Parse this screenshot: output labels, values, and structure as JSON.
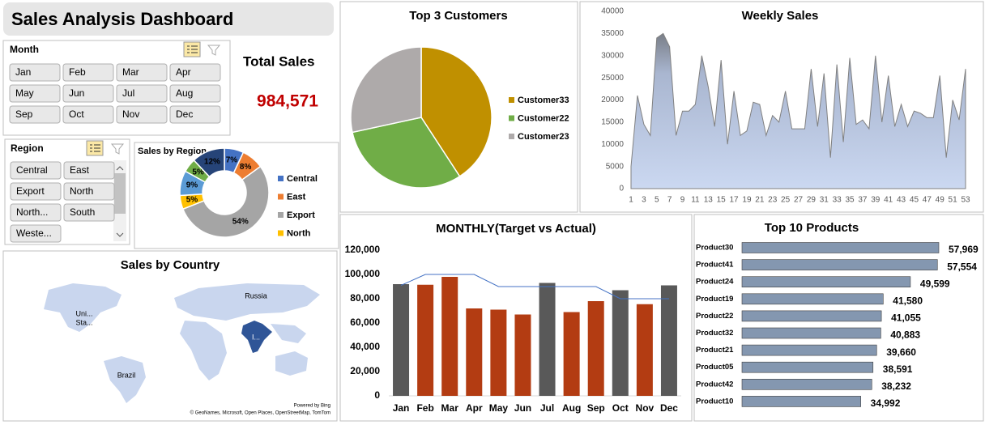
{
  "header": {
    "title": "Sales Analysis Dashboard"
  },
  "month_slicer": {
    "title": "Month",
    "items": [
      "Jan",
      "Feb",
      "Mar",
      "Apr",
      "May",
      "Jun",
      "Jul",
      "Aug",
      "Sep",
      "Oct",
      "Nov",
      "Dec"
    ]
  },
  "region_slicer": {
    "title": "Region",
    "items": [
      "Central",
      "East",
      "Export",
      "North",
      "North...",
      "South",
      "Weste..."
    ]
  },
  "total_sales": {
    "label": "Total Sales",
    "value": "984,571"
  },
  "map": {
    "title": "Sales by Country",
    "labels": [
      "Russia",
      "Uni...",
      "Sta...",
      "I...",
      "Brazil"
    ],
    "credits": [
      "Powered by Bing",
      "© GeoNames, Microsoft, Open Places, OpenStreetMap, TomTom"
    ]
  },
  "chart_data": [
    {
      "type": "pie",
      "title": "Top 3 Customers",
      "categories": [
        "Customer33",
        "Customer22",
        "Customer23"
      ],
      "values": [
        40.8,
        30.8,
        28.4
      ],
      "colors": [
        "#c09000",
        "#70ad47",
        "#aeaaaa"
      ]
    },
    {
      "type": "area",
      "title": "Weekly Sales",
      "x": [
        1,
        2,
        3,
        4,
        5,
        6,
        7,
        8,
        9,
        10,
        11,
        12,
        13,
        14,
        15,
        16,
        17,
        18,
        19,
        20,
        21,
        22,
        23,
        24,
        25,
        26,
        27,
        28,
        29,
        30,
        31,
        32,
        33,
        34,
        35,
        36,
        37,
        38,
        39,
        40,
        41,
        42,
        43,
        44,
        45,
        46,
        47,
        48,
        49,
        50,
        51,
        52,
        53
      ],
      "values": [
        5000,
        21000,
        14500,
        12000,
        34000,
        35000,
        32000,
        12000,
        17500,
        17500,
        19000,
        30000,
        23000,
        14000,
        29000,
        10000,
        22000,
        12000,
        13000,
        19500,
        19000,
        12000,
        16500,
        15000,
        22000,
        13500,
        13500,
        13500,
        27000,
        14000,
        26000,
        7000,
        28000,
        10500,
        29500,
        14500,
        15500,
        13500,
        30000,
        15000,
        25500,
        14000,
        19000,
        14000,
        17500,
        17000,
        16000,
        16000,
        25500,
        7000,
        20000,
        15500,
        27000
      ],
      "xlim": [
        1,
        53
      ],
      "xticks": [
        1,
        3,
        5,
        7,
        9,
        11,
        13,
        15,
        17,
        19,
        21,
        23,
        25,
        27,
        29,
        31,
        33,
        35,
        37,
        39,
        41,
        43,
        45,
        47,
        49,
        51,
        53
      ],
      "ylim": [
        0,
        40000
      ],
      "yticks": [
        0,
        5000,
        10000,
        15000,
        20000,
        25000,
        30000,
        35000,
        40000
      ],
      "color": "#808080"
    },
    {
      "type": "donut",
      "title": "Sales by Region",
      "categories": [
        "Central",
        "East",
        "Export",
        "North",
        null,
        null,
        null
      ],
      "values": [
        7,
        8,
        54,
        5,
        9,
        5,
        12
      ],
      "value_labels": [
        "7%",
        "8%",
        "54%",
        "5%",
        "9%",
        "5%",
        "12%"
      ],
      "colors": [
        "#4472c4",
        "#ed7d31",
        "#a5a5a5",
        "#ffc000",
        "#5b9bd5",
        "#70ad47",
        "#264478"
      ]
    },
    {
      "type": "combo",
      "title": "MONTHLY(Target vs Actual)",
      "categories": [
        "Jan",
        "Feb",
        "Mar",
        "Apr",
        "May",
        "Jun",
        "Jul",
        "Aug",
        "Sep",
        "Oct",
        "Nov",
        "Dec"
      ],
      "series": [
        {
          "type": "bar",
          "colors": [
            "#595959",
            "#b33c12",
            "#b33c12",
            "#b33c12",
            "#b33c12",
            "#b33c12",
            "#595959",
            "#b33c12",
            "#b33c12",
            "#595959",
            "#b33c12",
            "#595959"
          ],
          "values": [
            92000,
            91500,
            98000,
            72000,
            71000,
            67000,
            93000,
            69000,
            78000,
            87000,
            75500,
            91000
          ]
        },
        {
          "type": "line",
          "color": "#4472c4",
          "values": [
            91000,
            100000,
            100000,
            100000,
            90000,
            90000,
            90000,
            90000,
            90000,
            80000,
            80000,
            80000
          ]
        }
      ],
      "ylim": [
        0,
        120000
      ],
      "yticks": [
        0,
        {
          "value": 20000,
          "label": "20,000"
        },
        {
          "value": 40000,
          "label": "40,000"
        },
        {
          "value": 60000,
          "label": "60,000"
        },
        {
          "value": 80000,
          "label": "80,000"
        },
        {
          "value": 100000,
          "label": "100,000"
        },
        {
          "value": 120000,
          "label": "120,000"
        }
      ]
    },
    {
      "type": "hbar",
      "title": "Top 10 Products",
      "categories": [
        "Product30",
        "Product41",
        "Product24",
        "Product19",
        "Product22",
        "Product32",
        "Product21",
        "Product05",
        "Product42",
        "Product10"
      ],
      "values": [
        57969,
        57554,
        49599,
        41580,
        41055,
        40883,
        39660,
        38591,
        38232,
        34992
      ],
      "value_labels": [
        "57,969",
        "57,554",
        "49,599",
        "41,580",
        "41,055",
        "40,883",
        "39,660",
        "38,591",
        "38,232",
        "34,992"
      ],
      "color": "#8497b0"
    }
  ]
}
